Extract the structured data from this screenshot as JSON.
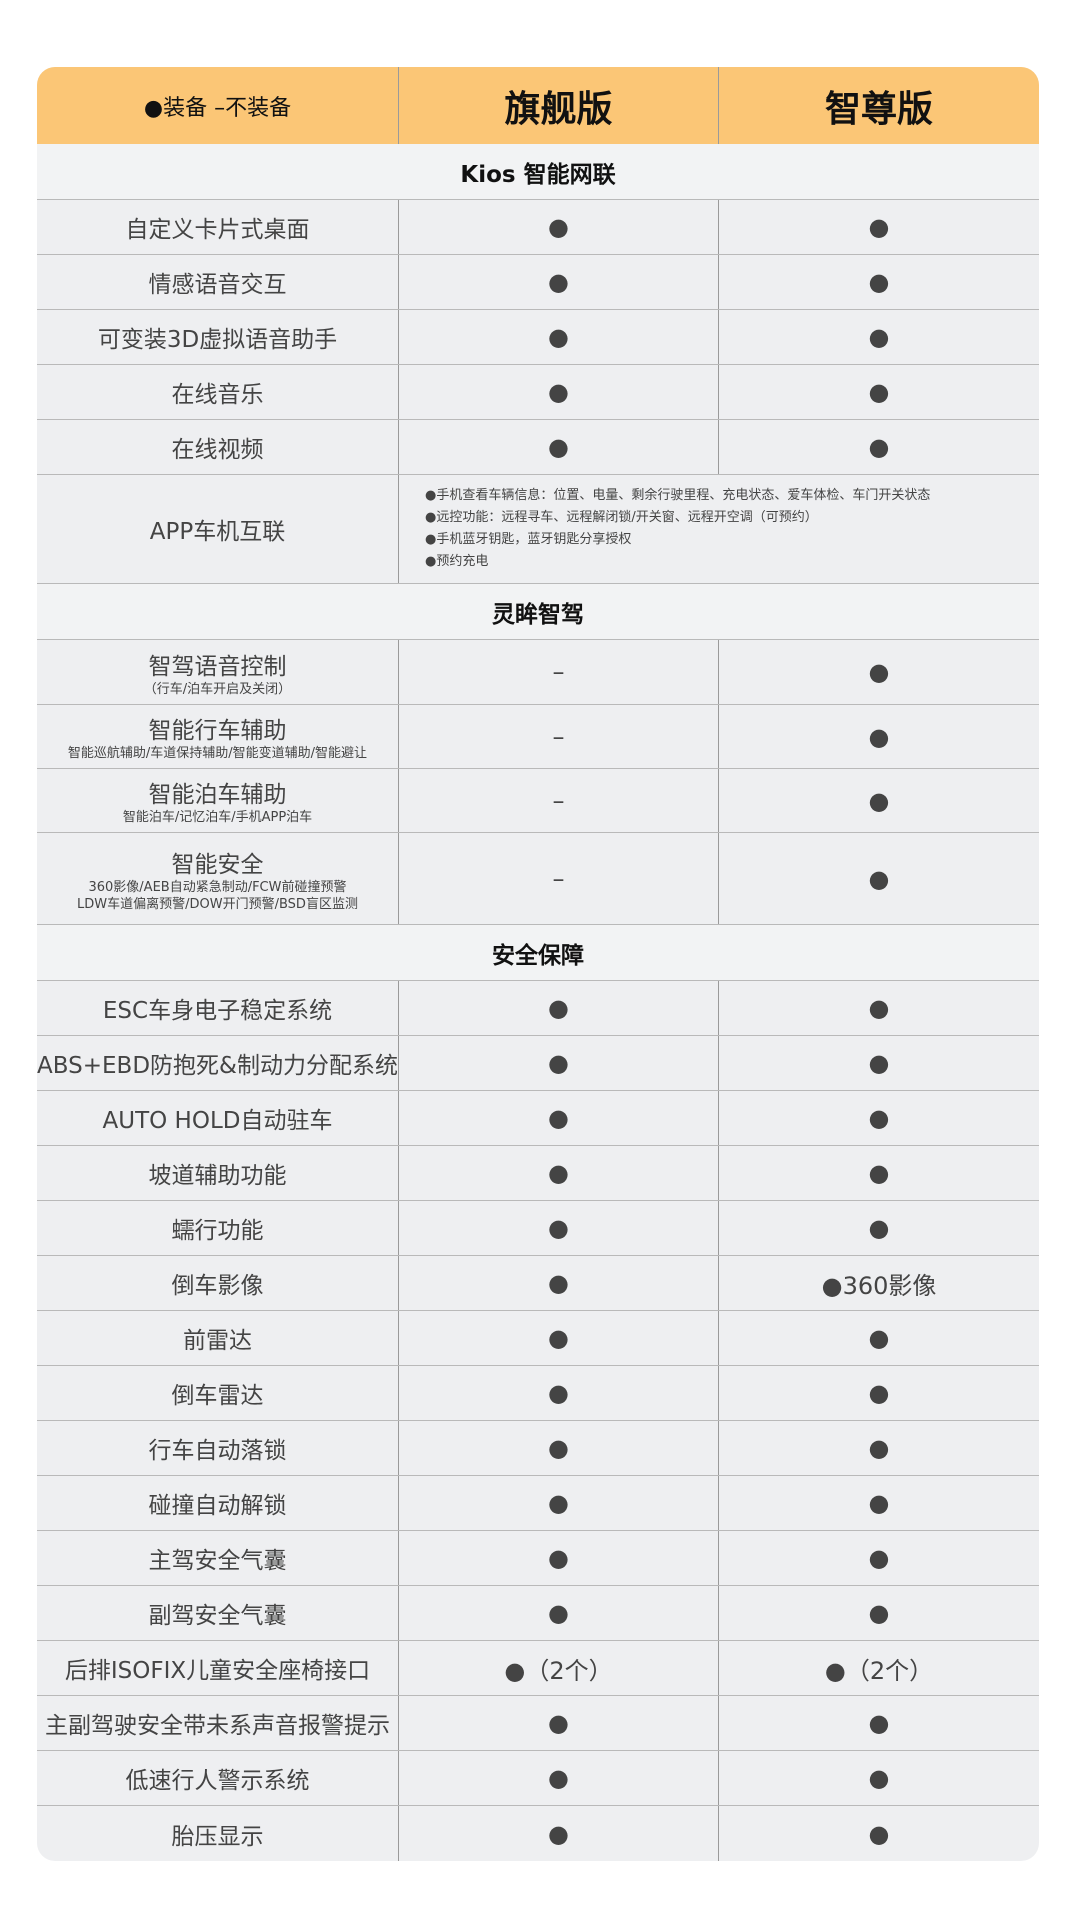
{
  "header": {
    "legend": "●装备 –不装备",
    "columns": [
      "旗舰版",
      "智尊版"
    ]
  },
  "sections": [
    {
      "title": "Kios 智能网联",
      "rows": [
        {
          "name": "自定义卡片式桌面",
          "values": [
            "●",
            "●"
          ]
        },
        {
          "name": "情感语音交互",
          "values": [
            "●",
            "●"
          ]
        },
        {
          "name": "可变装3D虚拟语音助手",
          "values": [
            "●",
            "●"
          ]
        },
        {
          "name": "在线音乐",
          "values": [
            "●",
            "●"
          ]
        },
        {
          "name": "在线视频",
          "values": [
            "●",
            "●"
          ]
        },
        {
          "name": "APP车机互联",
          "detail": [
            "●手机查看车辆信息：位置、电量、剩余行驶里程、充电状态、爱车体检、车门开关状态",
            "●远控功能：远程寻车、远程解闭锁/开关窗、远程开空调（可预约）",
            "●手机蓝牙钥匙，蓝牙钥匙分享授权",
            "●预约充电"
          ]
        }
      ]
    },
    {
      "title": "灵眸智驾",
      "rows": [
        {
          "name": "智驾语音控制",
          "sub": [
            "（行车/泊车开启及关闭）"
          ],
          "values": [
            "–",
            "●"
          ]
        },
        {
          "name": "智能行车辅助",
          "sub": [
            "智能巡航辅助/车道保持辅助/智能变道辅助/智能避让"
          ],
          "values": [
            "–",
            "●"
          ]
        },
        {
          "name": "智能泊车辅助",
          "sub": [
            "智能泊车/记忆泊车/手机APP泊车"
          ],
          "values": [
            "–",
            "●"
          ]
        },
        {
          "name": "智能安全",
          "sub": [
            "360影像/AEB自动紧急制动/FCW前碰撞预警",
            "LDW车道偏离预警/DOW开门预警/BSD盲区监测"
          ],
          "values": [
            "–",
            "●"
          ]
        }
      ]
    },
    {
      "title": "安全保障",
      "rows": [
        {
          "name": "ESC车身电子稳定系统",
          "values": [
            "●",
            "●"
          ]
        },
        {
          "name": "ABS+EBD防抱死&制动力分配系统",
          "values": [
            "●",
            "●"
          ]
        },
        {
          "name": "AUTO HOLD自动驻车",
          "values": [
            "●",
            "●"
          ]
        },
        {
          "name": "坡道辅助功能",
          "values": [
            "●",
            "●"
          ]
        },
        {
          "name": "蠕行功能",
          "values": [
            "●",
            "●"
          ]
        },
        {
          "name": "倒车影像",
          "values": [
            "●",
            "●360影像"
          ]
        },
        {
          "name": "前雷达",
          "values": [
            "●",
            "●"
          ]
        },
        {
          "name": "倒车雷达",
          "values": [
            "●",
            "●"
          ]
        },
        {
          "name": "行车自动落锁",
          "values": [
            "●",
            "●"
          ]
        },
        {
          "name": "碰撞自动解锁",
          "values": [
            "●",
            "●"
          ]
        },
        {
          "name": "主驾安全气囊",
          "values": [
            "●",
            "●"
          ]
        },
        {
          "name": "副驾安全气囊",
          "values": [
            "●",
            "●"
          ]
        },
        {
          "name": "后排ISOFIX儿童安全座椅接口",
          "values": [
            "●（2个）",
            "●（2个）"
          ]
        },
        {
          "name": "主副驾驶安全带未系声音报警提示",
          "values": [
            "●",
            "●"
          ]
        },
        {
          "name": "低速行人警示系统",
          "values": [
            "●",
            "●"
          ]
        },
        {
          "name": "胎压显示",
          "values": [
            "●",
            "●"
          ]
        }
      ]
    }
  ]
}
